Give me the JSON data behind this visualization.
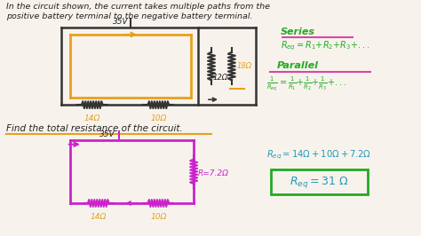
{
  "bg_color": "#f7f3ec",
  "title_line1": "In the circuit shown, the current takes multiple paths from the",
  "title_line2": "positive battery terminal to the negative battery terminal.",
  "find_text": "Find the total resistance of the circuit.",
  "series_label": "Series",
  "parallel_label": "Parallel",
  "req_eq": "Req= 14Ω + 10Ω + 7.2Ω",
  "req_ans": "Req=31 Ω",
  "r1": "14Ω",
  "r2": "10Ω",
  "r3": "12Ω",
  "r4": "18Ω",
  "voltage": "35V",
  "r_parallel": "R=7.2Ω",
  "text_color": "#222222",
  "orange_color": "#e8a020",
  "green_color": "#22aa22",
  "magenta_color": "#cc22cc",
  "cyan_color": "#2299bb",
  "pink_color": "#dd44aa",
  "box_color": "#22aa22",
  "circuit_color": "#333333"
}
